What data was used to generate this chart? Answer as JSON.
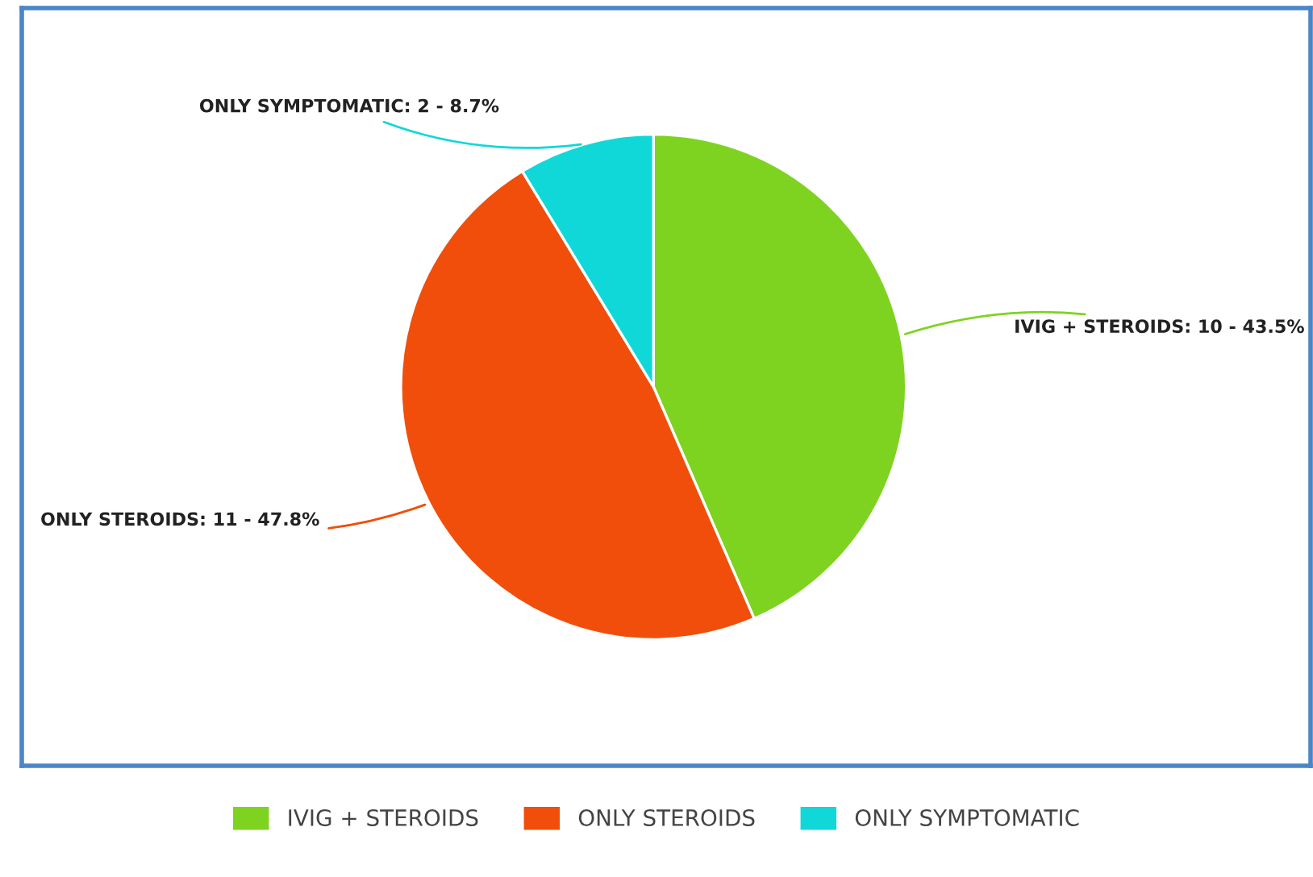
{
  "chart_data": {
    "type": "pie",
    "categories": [
      "IVIG + STEROIDS",
      "ONLY STEROIDS",
      "ONLY SYMPTOMATIC"
    ],
    "values": [
      10,
      11,
      2
    ],
    "colors": [
      "#7ed321",
      "#f04e0a",
      "#10d8d8"
    ],
    "value_labels": [
      "IVIG + STEROIDS: 10 - 43.5%",
      "ONLY STEROIDS: 11 - 47.8%",
      "ONLY SYMPTOMATIC: 2 - 8.7%"
    ],
    "legend": "bottom"
  }
}
